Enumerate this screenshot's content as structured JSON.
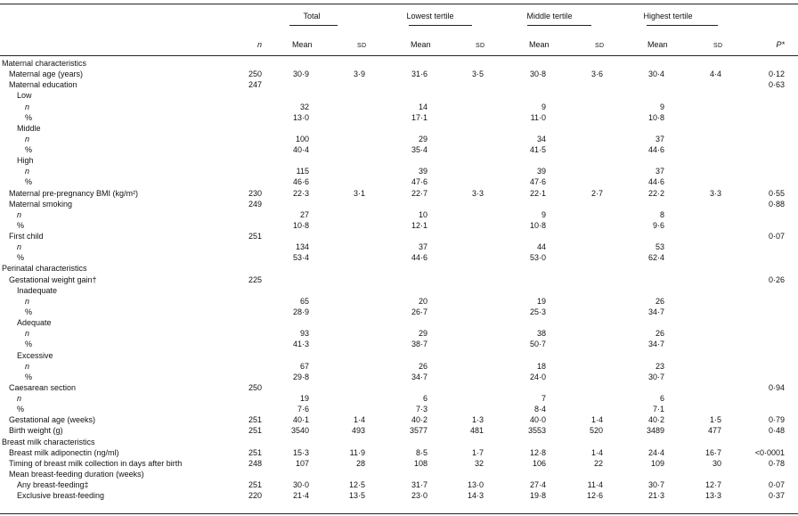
{
  "header": {
    "groups": [
      "Total",
      "Lowest tertile",
      "Middle tertile",
      "Highest tertile"
    ],
    "n": "n",
    "mean": "Mean",
    "sd": "SD",
    "p": "P*"
  },
  "rows": [
    {
      "label": "Maternal characteristics",
      "indent": 0
    },
    {
      "label": "Maternal age (years)",
      "indent": 1,
      "n": "250",
      "vals": [
        "30·9",
        "3·9",
        "31·6",
        "3·5",
        "30·8",
        "3·6",
        "30·4",
        "4·4"
      ],
      "p": "0·12"
    },
    {
      "label": "Maternal education",
      "indent": 1,
      "n": "247",
      "p": "0·63"
    },
    {
      "label": "Low",
      "indent": 2
    },
    {
      "label": "n",
      "indent": 3,
      "italic": true,
      "vals": [
        "32",
        "",
        "14",
        "",
        "9",
        "",
        "9",
        ""
      ]
    },
    {
      "label": "%",
      "indent": 3,
      "vals": [
        "13·0",
        "",
        "17·1",
        "",
        "11·0",
        "",
        "10·8",
        ""
      ]
    },
    {
      "label": "Middle",
      "indent": 2
    },
    {
      "label": "n",
      "indent": 3,
      "italic": true,
      "vals": [
        "100",
        "",
        "29",
        "",
        "34",
        "",
        "37",
        ""
      ]
    },
    {
      "label": "%",
      "indent": 3,
      "vals": [
        "40·4",
        "",
        "35·4",
        "",
        "41·5",
        "",
        "44·6",
        ""
      ]
    },
    {
      "label": "High",
      "indent": 2
    },
    {
      "label": "n",
      "indent": 3,
      "italic": true,
      "vals": [
        "115",
        "",
        "39",
        "",
        "39",
        "",
        "37",
        ""
      ]
    },
    {
      "label": "%",
      "indent": 3,
      "vals": [
        "46·6",
        "",
        "47·6",
        "",
        "47·6",
        "",
        "44·6",
        ""
      ]
    },
    {
      "label": "Maternal pre-pregnancy BMI (kg/m²)",
      "indent": 1,
      "n": "230",
      "vals": [
        "22·3",
        "3·1",
        "22·7",
        "3·3",
        "22·1",
        "2·7",
        "22·2",
        "3·3"
      ],
      "p": "0·55"
    },
    {
      "label": "Maternal smoking",
      "indent": 1,
      "n": "249",
      "p": "0·88"
    },
    {
      "label": "n",
      "indent": 2,
      "italic": true,
      "vals": [
        "27",
        "",
        "10",
        "",
        "9",
        "",
        "8",
        ""
      ]
    },
    {
      "label": "%",
      "indent": 2,
      "vals": [
        "10·8",
        "",
        "12·1",
        "",
        "10·8",
        "",
        "9·6",
        ""
      ]
    },
    {
      "label": "First child",
      "indent": 1,
      "n": "251",
      "p": "0·07"
    },
    {
      "label": "n",
      "indent": 2,
      "italic": true,
      "vals": [
        "134",
        "",
        "37",
        "",
        "44",
        "",
        "53",
        ""
      ]
    },
    {
      "label": "%",
      "indent": 2,
      "vals": [
        "53·4",
        "",
        "44·6",
        "",
        "53·0",
        "",
        "62·4",
        ""
      ]
    },
    {
      "label": "Perinatal characteristics",
      "indent": 0
    },
    {
      "label": "Gestational weight gain†",
      "indent": 1,
      "n": "225",
      "p": "0·26"
    },
    {
      "label": "Inadequate",
      "indent": 2
    },
    {
      "label": "n",
      "indent": 3,
      "italic": true,
      "vals": [
        "65",
        "",
        "20",
        "",
        "19",
        "",
        "26",
        ""
      ]
    },
    {
      "label": "%",
      "indent": 3,
      "vals": [
        "28·9",
        "",
        "26·7",
        "",
        "25·3",
        "",
        "34·7",
        ""
      ]
    },
    {
      "label": "Adequate",
      "indent": 2
    },
    {
      "label": "n",
      "indent": 3,
      "italic": true,
      "vals": [
        "93",
        "",
        "29",
        "",
        "38",
        "",
        "26",
        ""
      ]
    },
    {
      "label": "%",
      "indent": 3,
      "vals": [
        "41·3",
        "",
        "38·7",
        "",
        "50·7",
        "",
        "34·7",
        ""
      ]
    },
    {
      "label": "Excessive",
      "indent": 2
    },
    {
      "label": "n",
      "indent": 3,
      "italic": true,
      "vals": [
        "67",
        "",
        "26",
        "",
        "18",
        "",
        "23",
        ""
      ]
    },
    {
      "label": "%",
      "indent": 3,
      "vals": [
        "29·8",
        "",
        "34·7",
        "",
        "24·0",
        "",
        "30·7",
        ""
      ]
    },
    {
      "label": "Caesarean section",
      "indent": 1,
      "n": "250",
      "p": "0·94"
    },
    {
      "label": "n",
      "indent": 2,
      "italic": true,
      "vals": [
        "19",
        "",
        "6",
        "",
        "7",
        "",
        "6",
        ""
      ]
    },
    {
      "label": "%",
      "indent": 2,
      "vals": [
        "7·6",
        "",
        "7·3",
        "",
        "8·4",
        "",
        "7·1",
        ""
      ]
    },
    {
      "label": "Gestational age (weeks)",
      "indent": 1,
      "n": "251",
      "vals": [
        "40·1",
        "1·4",
        "40·2",
        "1·3",
        "40·0",
        "1·4",
        "40·2",
        "1·5"
      ],
      "p": "0·79"
    },
    {
      "label": "Birth weight (g)",
      "indent": 1,
      "n": "251",
      "vals": [
        "3540",
        "493",
        "3577",
        "481",
        "3553",
        "520",
        "3489",
        "477"
      ],
      "p": "0·48"
    },
    {
      "label": "Breast milk characteristics",
      "indent": 0
    },
    {
      "label": "Breast milk adiponectin (ng/ml)",
      "indent": 1,
      "n": "251",
      "vals": [
        "15·3",
        "11·9",
        "8·5",
        "1·7",
        "12·8",
        "1·4",
        "24·4",
        "16·7"
      ],
      "p": "<0·0001"
    },
    {
      "label": "Timing of breast milk collection in days after birth",
      "indent": 1,
      "n": "248",
      "vals": [
        "107",
        "28",
        "108",
        "32",
        "106",
        "22",
        "109",
        "30"
      ],
      "p": "0·78"
    },
    {
      "label": "Mean breast-feeding duration (weeks)",
      "indent": 1
    },
    {
      "label": "Any breast-feeding‡",
      "indent": 2,
      "n": "251",
      "vals": [
        "30·0",
        "12·5",
        "31·7",
        "13·0",
        "27·4",
        "11·4",
        "30·7",
        "12·7"
      ],
      "p": "0·07"
    },
    {
      "label": "Exclusive breast-feeding",
      "indent": 2,
      "n": "220",
      "vals": [
        "21·4",
        "13·5",
        "23·0",
        "14·3",
        "19·8",
        "12·6",
        "21·3",
        "13·3"
      ],
      "p": "0·37"
    }
  ]
}
